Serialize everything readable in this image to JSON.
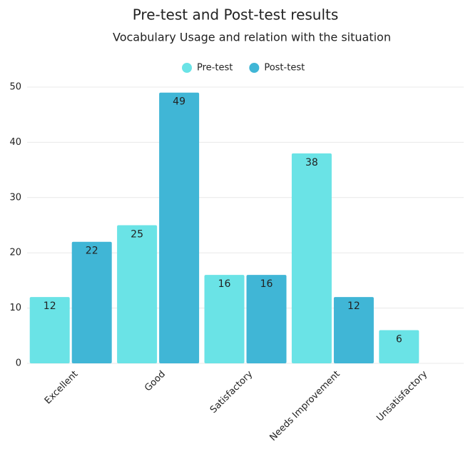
{
  "chart_data": {
    "type": "bar",
    "title": "Pre-test and Post-test results",
    "subtitle": "Vocabulary Usage and relation with the situation",
    "categories": [
      "Excellent",
      "Good",
      "Satisfactory",
      "Needs Improvement",
      "Unsatisfactory"
    ],
    "series": [
      {
        "name": "Pre-test",
        "color": "#6ae3e6",
        "values": [
          12,
          25,
          16,
          38,
          6
        ]
      },
      {
        "name": "Post-test",
        "color": "#40b6d6",
        "values": [
          22,
          49,
          16,
          12,
          null
        ]
      }
    ],
    "ylim": [
      0,
      50
    ],
    "yticks": [
      0,
      10,
      20,
      30,
      40,
      50
    ],
    "grid": true,
    "legend": "top"
  }
}
